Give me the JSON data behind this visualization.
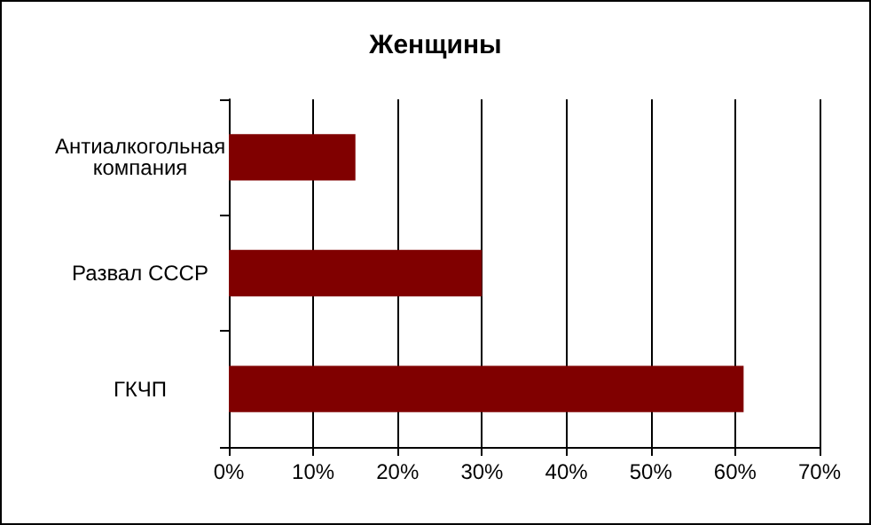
{
  "chart_data": {
    "type": "bar",
    "title": "Женщины",
    "orientation": "horizontal",
    "categories": [
      "Антиалкогольная\nкомпания",
      "Развал СССР",
      "ГКЧП"
    ],
    "values": [
      15,
      30,
      61
    ],
    "color": "#800000",
    "xlim": [
      0,
      70
    ],
    "xticks": [
      {
        "value": 0,
        "label": "0%"
      },
      {
        "value": 10,
        "label": "10%"
      },
      {
        "value": 20,
        "label": "20%"
      },
      {
        "value": 30,
        "label": "30%"
      },
      {
        "value": 40,
        "label": "40%"
      },
      {
        "value": 50,
        "label": "50%"
      },
      {
        "value": 60,
        "label": "60%"
      },
      {
        "value": 70,
        "label": "70%"
      }
    ],
    "grid": "x"
  }
}
